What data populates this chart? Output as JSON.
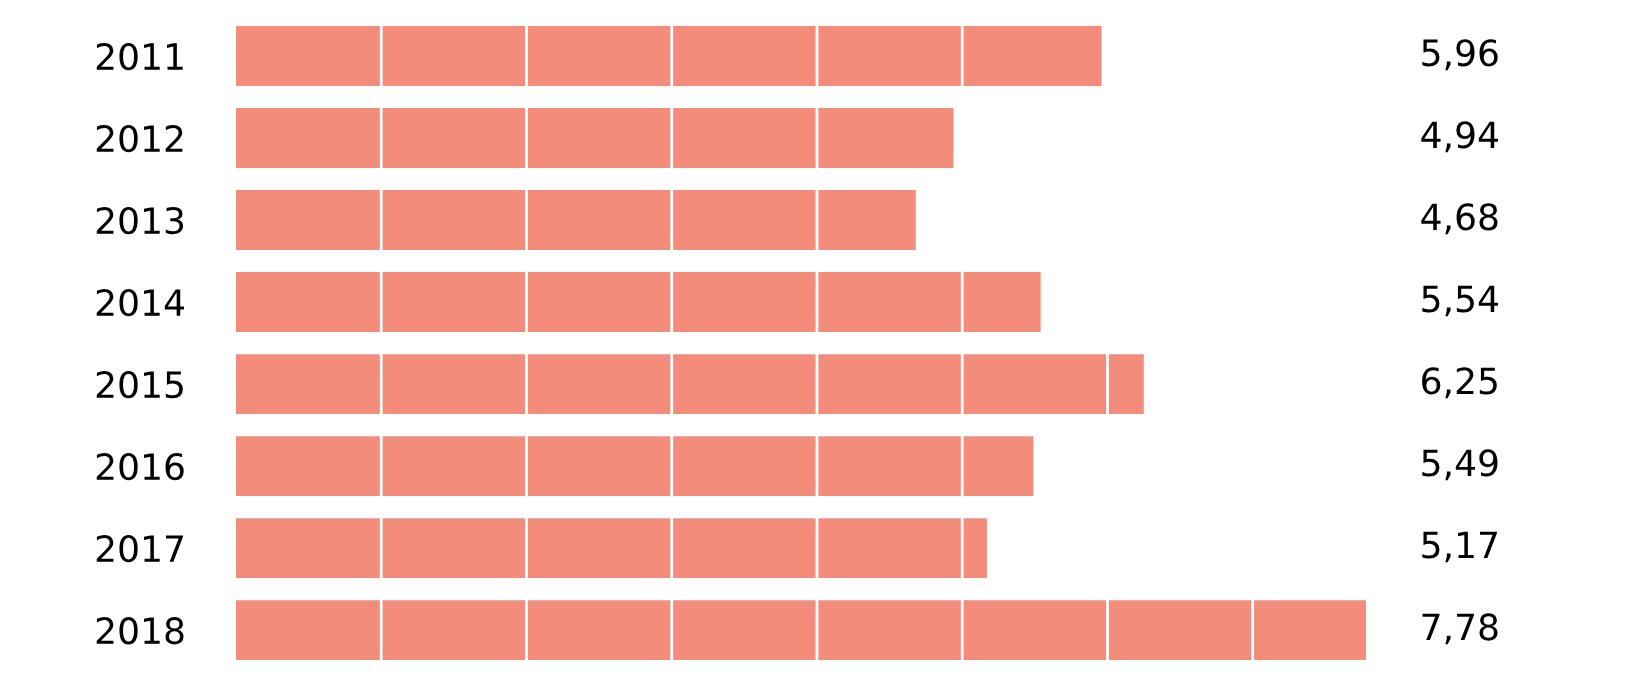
{
  "chart_data": {
    "type": "bar",
    "orientation": "horizontal",
    "categories": [
      "2011",
      "2012",
      "2013",
      "2014",
      "2015",
      "2016",
      "2017",
      "2018"
    ],
    "values": [
      5.96,
      4.94,
      4.68,
      5.54,
      6.25,
      5.49,
      5.17,
      7.78
    ],
    "value_labels": [
      "5,96",
      "4,94",
      "4,68",
      "5,54",
      "6,25",
      "5,49",
      "5,17",
      "7,78"
    ],
    "color": "#f48c7c",
    "xticks": [
      {
        "value": 1,
        "label": null
      },
      {
        "value": 2,
        "label": null
      },
      {
        "value": 3,
        "label": null
      },
      {
        "value": 4,
        "label": null
      },
      {
        "value": 5,
        "label": null
      },
      {
        "value": 6,
        "label": null
      },
      {
        "value": 7,
        "label": null
      }
    ],
    "grid": "x",
    "tick_labels": "y",
    "legend": false
  }
}
